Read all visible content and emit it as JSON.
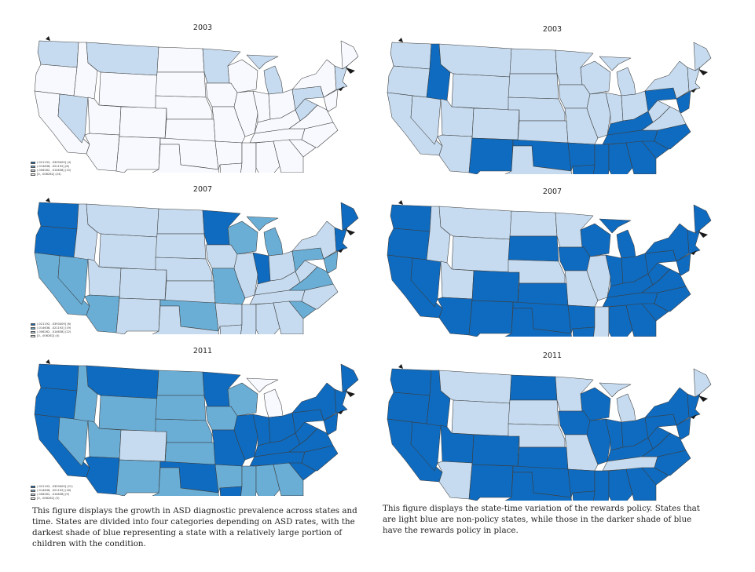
{
  "colors": {
    "c0": "#f7f9fe",
    "c1": "#c6dbef",
    "c2": "#6aaed6",
    "c3": "#0f6bbf"
  },
  "legend": {
    "left_2003": [
      "(.021192, .0393409]  (4)",
      "(.014638, .021192] (8)",
      "(.006262, .014638] (15)",
      "[0, .006262] (24)"
    ],
    "left_2007": [
      "(.021192, .0393409]  (6)",
      "(.014638, .021192] (19)",
      "(.006262, .014638] (22)",
      "[0, .006262] (4)"
    ],
    "left_2011": [
      "(.021192, .0393409]  (21)",
      "(.014638, .021192] (16)",
      "(.006262, .014638] (9)",
      "[0, .006262] (5)"
    ]
  },
  "panels": [
    {
      "year": "2003",
      "col": "left",
      "key": "L2003",
      "legend": "left_2003",
      "states": {
        "WA": 1,
        "OR": 0,
        "CA": 0,
        "NV": 1,
        "ID": 0,
        "MT": 1,
        "WY": 0,
        "UT": 0,
        "AZ": 0,
        "CO": 0,
        "NM": 0,
        "ND": 0,
        "SD": 0,
        "NE": 0,
        "KS": 0,
        "OK": 0,
        "TX": 0,
        "MN": 1,
        "IA": 0,
        "MO": 0,
        "AR": 0,
        "LA": 0,
        "WI": 0,
        "IL": 0,
        "MI": 1,
        "IN": 0,
        "OH": 0,
        "KY": 0,
        "TN": 0,
        "MS": 0,
        "AL": 0,
        "GA": 0,
        "FL": 0,
        "SC": 0,
        "NC": 0,
        "VA": 0,
        "WV": 1,
        "PA": 1,
        "NY": 0,
        "ME": 0,
        "NE_ST": 1,
        "MIDA": 0
      }
    },
    {
      "year": "2003",
      "col": "right",
      "key": "R2003",
      "states": {
        "WA": 1,
        "OR": 1,
        "CA": 1,
        "NV": 1,
        "ID": 3,
        "MT": 1,
        "WY": 1,
        "UT": 1,
        "AZ": 1,
        "CO": 1,
        "NM": 3,
        "ND": 1,
        "SD": 1,
        "NE": 1,
        "KS": 1,
        "OK": 3,
        "TX": 1,
        "MN": 1,
        "IA": 1,
        "MO": 1,
        "AR": 3,
        "LA": 3,
        "WI": 1,
        "IL": 1,
        "MI": 1,
        "IN": 1,
        "OH": 1,
        "KY": 3,
        "TN": 3,
        "MS": 3,
        "AL": 3,
        "GA": 3,
        "FL": 3,
        "SC": 3,
        "NC": 3,
        "VA": 1,
        "WV": 1,
        "PA": 3,
        "NY": 1,
        "ME": 1,
        "NE_ST": 1,
        "MIDA": 3
      }
    },
    {
      "year": "2007",
      "col": "left",
      "key": "L2007",
      "legend": "left_2007",
      "states": {
        "WA": 3,
        "OR": 3,
        "CA": 2,
        "NV": 2,
        "ID": 1,
        "MT": 1,
        "WY": 1,
        "UT": 1,
        "AZ": 2,
        "CO": 1,
        "NM": 1,
        "ND": 1,
        "SD": 1,
        "NE": 1,
        "KS": 1,
        "OK": 2,
        "TX": 1,
        "MN": 3,
        "IA": 1,
        "MO": 2,
        "AR": 1,
        "LA": 1,
        "WI": 2,
        "IL": 1,
        "MI": 2,
        "IN": 3,
        "OH": 1,
        "KY": 1,
        "TN": 1,
        "MS": 1,
        "AL": 1,
        "GA": 1,
        "FL": 2,
        "SC": 2,
        "NC": 1,
        "VA": 2,
        "WV": 1,
        "PA": 2,
        "NY": 1,
        "ME": 3,
        "NE_ST": 3,
        "MIDA": 2
      }
    },
    {
      "year": "2007",
      "col": "right",
      "key": "R2007",
      "states": {
        "WA": 3,
        "OR": 3,
        "CA": 3,
        "NV": 3,
        "ID": 1,
        "MT": 1,
        "WY": 1,
        "UT": 1,
        "AZ": 3,
        "CO": 3,
        "NM": 3,
        "ND": 1,
        "SD": 3,
        "NE": 1,
        "KS": 3,
        "OK": 3,
        "TX": 3,
        "MN": 1,
        "IA": 3,
        "MO": 1,
        "AR": 3,
        "LA": 3,
        "WI": 3,
        "IL": 1,
        "MI": 3,
        "IN": 3,
        "OH": 3,
        "KY": 3,
        "TN": 3,
        "MS": 1,
        "AL": 3,
        "GA": 3,
        "FL": 3,
        "SC": 3,
        "NC": 3,
        "VA": 3,
        "WV": 3,
        "PA": 3,
        "NY": 3,
        "ME": 3,
        "NE_ST": 3,
        "MIDA": 3
      }
    },
    {
      "year": "2011",
      "col": "left",
      "key": "L2011",
      "legend": "left_2011",
      "states": {
        "WA": 3,
        "OR": 3,
        "CA": 3,
        "NV": 2,
        "ID": 2,
        "MT": 3,
        "WY": 2,
        "UT": 2,
        "AZ": 3,
        "CO": 1,
        "NM": 2,
        "ND": 2,
        "SD": 2,
        "NE": 2,
        "KS": 2,
        "OK": 3,
        "TX": 2,
        "MN": 3,
        "IA": 2,
        "MO": 3,
        "AR": 2,
        "LA": 3,
        "WI": 2,
        "IL": 3,
        "MI": 0,
        "IN": 3,
        "OH": 3,
        "KY": 3,
        "TN": 3,
        "MS": 2,
        "AL": 2,
        "GA": 2,
        "FL": 2,
        "SC": 3,
        "NC": 3,
        "VA": 3,
        "WV": 3,
        "PA": 3,
        "NY": 3,
        "ME": 3,
        "NE_ST": 3,
        "MIDA": 3
      }
    },
    {
      "year": "2011",
      "col": "right",
      "key": "R2011",
      "states": {
        "WA": 3,
        "OR": 3,
        "CA": 3,
        "NV": 3,
        "ID": 3,
        "MT": 1,
        "WY": 1,
        "UT": 3,
        "AZ": 1,
        "CO": 3,
        "NM": 3,
        "ND": 3,
        "SD": 1,
        "NE": 1,
        "KS": 3,
        "OK": 3,
        "TX": 3,
        "MN": 1,
        "IA": 3,
        "MO": 1,
        "AR": 3,
        "LA": 3,
        "WI": 3,
        "IL": 3,
        "MI": 1,
        "IN": 3,
        "OH": 3,
        "KY": 3,
        "TN": 1,
        "MS": 3,
        "AL": 3,
        "GA": 3,
        "FL": 3,
        "SC": 3,
        "NC": 3,
        "VA": 3,
        "WV": 3,
        "PA": 3,
        "NY": 3,
        "ME": 1,
        "NE_ST": 3,
        "MIDA": 3
      }
    }
  ],
  "captions": {
    "left": "This figure displays the growth in ASD diagnostic prevalence across states and time. States are divided into four categories depending on ASD rates, with the darkest shade of blue representing a state with a relatively large portion of children with the condition.",
    "right": "This figure displays the state-time variation of the rewards policy. States that are light blue are non-policy states, while those in the darker shade of blue have the rewards policy in place."
  }
}
